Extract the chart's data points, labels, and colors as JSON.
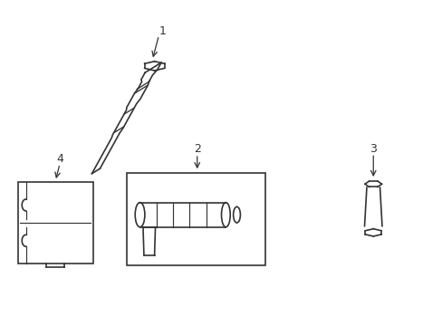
{
  "background_color": "#ffffff",
  "line_color": "#333333",
  "line_width": 1.2
}
